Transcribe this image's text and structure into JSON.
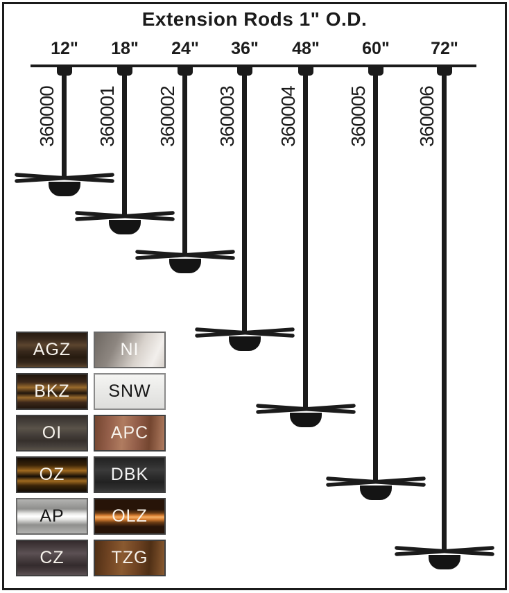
{
  "title": "Extension Rods 1\" O.D.",
  "rods": [
    {
      "size": "12\"",
      "part": "360000"
    },
    {
      "size": "18\"",
      "part": "360001"
    },
    {
      "size": "24\"",
      "part": "360002"
    },
    {
      "size": "36\"",
      "part": "360003"
    },
    {
      "size": "48\"",
      "part": "360004"
    },
    {
      "size": "60\"",
      "part": "360005"
    },
    {
      "size": "72\"",
      "part": "360006"
    }
  ],
  "colors": {
    "ink": "#1b1b1b",
    "background": "#ffffff"
  },
  "finishes": [
    {
      "code": "AGZ",
      "texture": "streak-subtle",
      "base": "#38291c",
      "accent": "#5c452e",
      "accent2": "#271b10",
      "text": "#f7f3ec",
      "border": "#3f3f3f"
    },
    {
      "code": "NI",
      "texture": "metal-diagonal",
      "base": "#8d8680",
      "accent": "#d8d2cc",
      "accent2": "#6e6862",
      "text": "#fbfaf8",
      "border": "#6a6a6a"
    },
    {
      "code": "BKZ",
      "texture": "streak-copper",
      "base": "#20150c",
      "accent": "#9a6a2c",
      "accent2": "#3c281a",
      "text": "#f7f3ec",
      "border": "#3f3f3f"
    },
    {
      "code": "SNW",
      "texture": "flat-light",
      "base": "#eaeae8",
      "accent": "#f5f5f3",
      "accent2": "#dededc",
      "text": "#151515",
      "border": "#8a8a8a"
    },
    {
      "code": "OI",
      "texture": "streak-subtle",
      "base": "#46403b",
      "accent": "#5a5349",
      "accent2": "#36302c",
      "text": "#f7f3ec",
      "border": "#3f3f3f"
    },
    {
      "code": "APC",
      "texture": "mottled",
      "base": "#935e49",
      "accent": "#b07c60",
      "accent2": "#744630",
      "text": "#f7f3ec",
      "border": "#3f3f3f"
    },
    {
      "code": "OZ",
      "texture": "streak-copper",
      "base": "#120b05",
      "accent": "#a06a20",
      "accent2": "#3a2408",
      "text": "#f7f3ec",
      "border": "#3f3f3f"
    },
    {
      "code": "DBK",
      "texture": "streak-subtle",
      "base": "#2d2d2d",
      "accent": "#3b3b3b",
      "accent2": "#222222",
      "text": "#f2f2f2",
      "border": "#3f3f3f"
    },
    {
      "code": "AP",
      "texture": "metal-band",
      "base": "#b3b3b1",
      "accent": "#e9e9e7",
      "accent2": "#8f8f8d",
      "text": "#151515",
      "border": "#6a6a6a"
    },
    {
      "code": "OLZ",
      "texture": "copper-band",
      "base": "#271408",
      "accent": "#e08434",
      "accent2": "#6b3c14",
      "text": "#f7f3ec",
      "border": "#3f3f3f"
    },
    {
      "code": "CZ",
      "texture": "streak-subtle",
      "base": "#473d3f",
      "accent": "#5c5154",
      "accent2": "#342b2d",
      "text": "#f7f3ec",
      "border": "#3f3f3f"
    },
    {
      "code": "TZG",
      "texture": "mottled",
      "base": "#6f4322",
      "accent": "#8a5a30",
      "accent2": "#4f2f15",
      "text": "#f7f3ec",
      "border": "#3f3f3f"
    }
  ]
}
